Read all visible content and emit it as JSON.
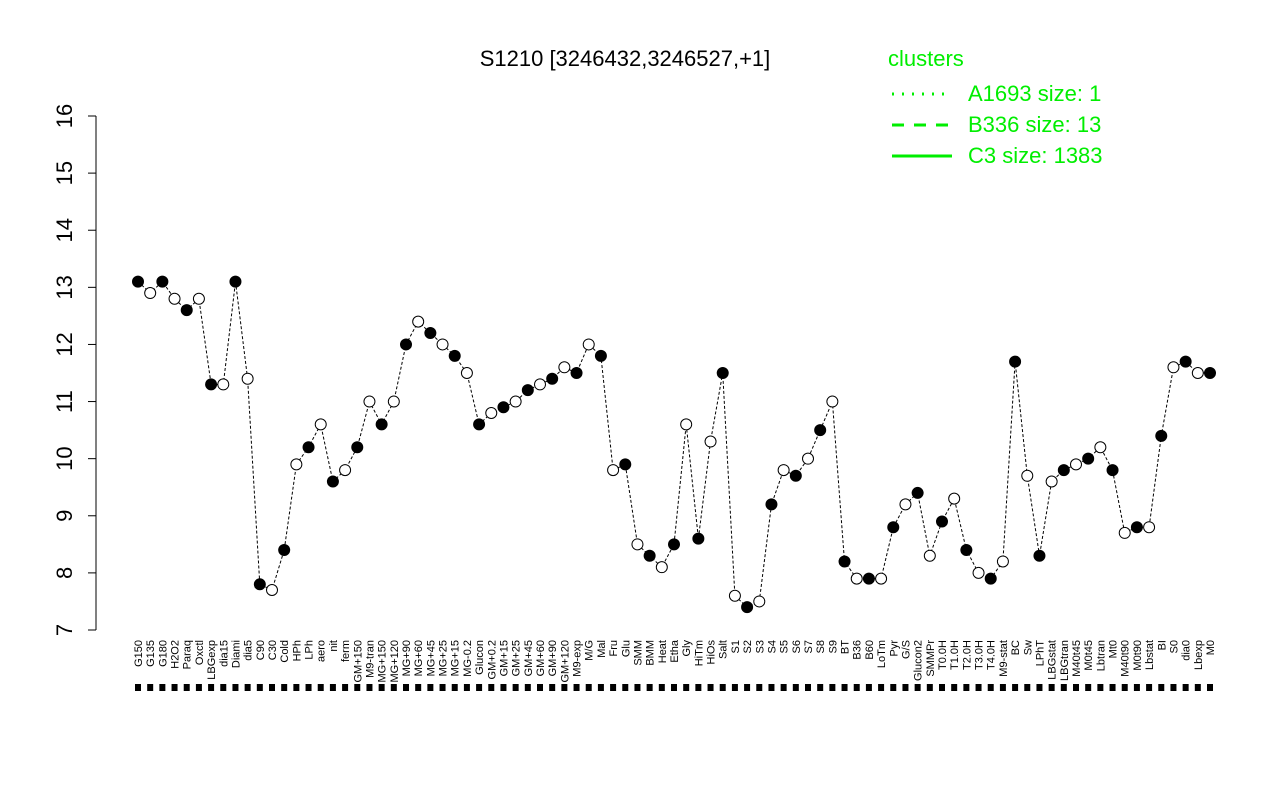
{
  "chart_data": {
    "type": "line",
    "title": "S1210 [3246432,3246527,+1]",
    "xlabel": "",
    "ylabel": "",
    "ylim": [
      7,
      16
    ],
    "yticks": [
      7,
      8,
      9,
      10,
      11,
      12,
      13,
      14,
      15,
      16
    ],
    "legend": {
      "title": "clusters",
      "placement": "top-right",
      "color": "#00ee00",
      "entries": [
        {
          "label": "A1693 size: 1",
          "style": "dotted"
        },
        {
          "label": "B336 size: 13",
          "style": "dashed"
        },
        {
          "label": "C3 size: 1383",
          "style": "solid"
        }
      ]
    },
    "categories": [
      "G150",
      "G135",
      "G180",
      "H2O2",
      "Paraq",
      "Oxctl",
      "LBGexp",
      "dia15",
      "Diami",
      "dia5",
      "C90",
      "C30",
      "Cold",
      "HPh",
      "LPh",
      "aero",
      "nit",
      "ferm",
      "GM+150",
      "M9-tran",
      "MG+150",
      "MG+120",
      "MG+90",
      "MG+60",
      "MG+45",
      "MG+25",
      "MG+15",
      "MG-0.2",
      "Glucon",
      "GM+0.2",
      "GM+15",
      "GM+25",
      "GM+45",
      "GM+60",
      "GM+90",
      "GM+120",
      "M9-exp",
      "M/G",
      "Mal",
      "Fru",
      "Glu",
      "SMM",
      "BMM",
      "Heat",
      "Etha",
      "Gly",
      "HiTm",
      "HiOs",
      "Salt",
      "S1",
      "S2",
      "S3",
      "S4",
      "S5",
      "S6",
      "S7",
      "S8",
      "S9",
      "BT",
      "B36",
      "B60",
      "LoTm",
      "Pyr",
      "G/S",
      "Glucon2",
      "SMMPr",
      "T0.0H",
      "T1.0H",
      "T2.0H",
      "T3.0H",
      "T4.0H",
      "M9-stat",
      "BC",
      "Sw",
      "LPhT",
      "LBGstat",
      "LBGtran",
      "M40t45",
      "M0t45",
      "Lbtran",
      "Mt0",
      "M40t90",
      "M0t90",
      "Lbstat",
      "BI",
      "S0",
      "dia0",
      "Lbexp",
      "M0"
    ],
    "series": [
      {
        "name": "",
        "values": [
          13.1,
          12.9,
          13.1,
          12.8,
          12.6,
          12.8,
          11.3,
          11.3,
          13.1,
          11.4,
          7.8,
          7.7,
          8.4,
          9.9,
          10.2,
          10.6,
          9.6,
          9.8,
          10.2,
          11.0,
          10.6,
          11.0,
          12.0,
          12.4,
          12.2,
          12.0,
          11.8,
          11.5,
          10.6,
          10.8,
          10.9,
          11.0,
          11.2,
          11.3,
          11.4,
          11.6,
          11.5,
          12.0,
          11.8,
          9.8,
          9.9,
          8.5,
          8.3,
          8.1,
          8.5,
          10.6,
          8.6,
          10.3,
          11.5,
          7.6,
          7.4,
          7.5,
          9.2,
          9.8,
          9.7,
          10.0,
          10.5,
          11.0,
          8.2,
          7.9,
          7.9,
          7.9,
          8.8,
          9.2,
          9.4,
          8.3,
          8.9,
          9.3,
          8.4,
          8.0,
          7.9,
          8.2,
          11.7,
          9.7,
          8.3,
          9.6,
          9.8,
          9.9,
          10.0,
          10.2,
          9.8,
          8.7,
          8.8,
          8.8,
          10.4,
          11.6,
          11.7,
          11.5,
          11.5
        ]
      }
    ]
  }
}
